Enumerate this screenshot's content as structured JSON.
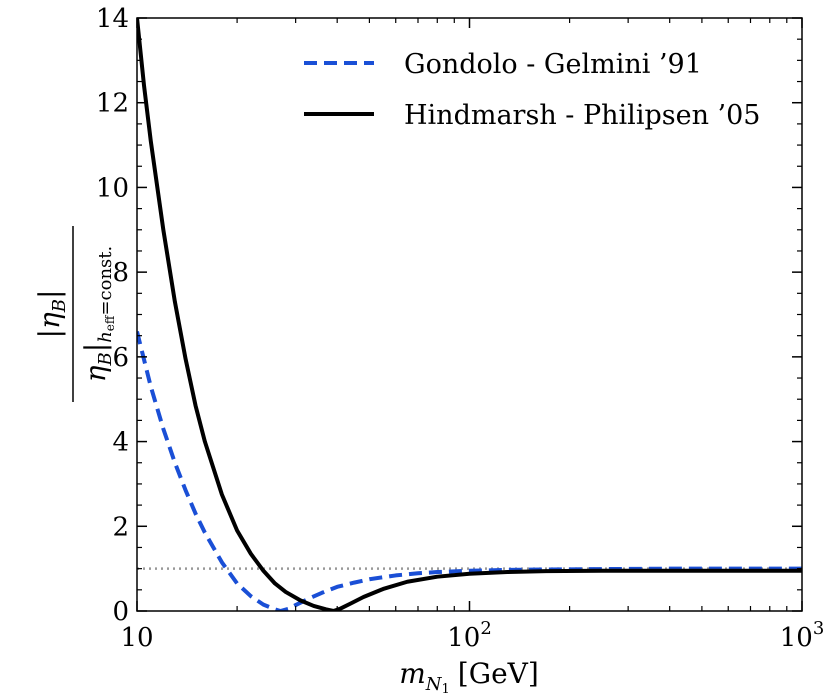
{
  "chart_data": {
    "type": "line",
    "title": "",
    "x_scale": "log",
    "xlim": [
      10,
      1000
    ],
    "ylim": [
      0,
      14
    ],
    "xlabel": "m_{N_1} [GeV]",
    "xlabel_main": "m",
    "xlabel_sub": "N",
    "xlabel_subsub": "1",
    "xlabel_unit": "[GeV]",
    "ylabel_numerator": "|η_B|",
    "ylabel_denominator": "η_B|_{h_eff=const.}",
    "y_num_main": "|η",
    "y_num_sub": "B",
    "y_num_close": "|",
    "y_den_main": "η",
    "y_den_sub": "B",
    "y_den_bar": "|",
    "y_den_h": "h",
    "y_den_eff": "eff",
    "y_den_const": "=const.",
    "x_ticks": [
      {
        "value": 10,
        "label": "10"
      },
      {
        "value": 100,
        "label": "10",
        "sup": "2"
      },
      {
        "value": 1000,
        "label": "10",
        "sup": "3"
      }
    ],
    "y_ticks": [
      {
        "value": 0,
        "label": "0"
      },
      {
        "value": 2,
        "label": "2"
      },
      {
        "value": 4,
        "label": "4"
      },
      {
        "value": 6,
        "label": "6"
      },
      {
        "value": 8,
        "label": "8"
      },
      {
        "value": 10,
        "label": "10"
      },
      {
        "value": 12,
        "label": "12"
      },
      {
        "value": 14,
        "label": "14"
      }
    ],
    "reference_line": {
      "y": 1,
      "color": "#999999",
      "style": "dotted"
    },
    "legend_position": "top-right",
    "series": [
      {
        "name": "Gondolo - Gelmini ’91",
        "color": "#1a4fd6",
        "style": "dashed",
        "x": [
          10,
          11,
          12,
          13,
          14,
          15,
          16,
          18,
          20,
          22,
          24,
          26,
          27,
          28.5,
          30,
          33,
          36,
          40,
          45,
          50,
          60,
          70,
          80,
          100,
          130,
          170,
          250,
          400,
          600,
          1000
        ],
        "y": [
          6.6,
          5.3,
          4.3,
          3.5,
          2.85,
          2.3,
          1.85,
          1.15,
          0.65,
          0.35,
          0.15,
          0.04,
          0.0,
          0.05,
          0.14,
          0.3,
          0.43,
          0.57,
          0.67,
          0.75,
          0.84,
          0.89,
          0.92,
          0.95,
          0.97,
          0.98,
          0.99,
          1.0,
          1.0,
          1.0
        ]
      },
      {
        "name": "Hindmarsh - Philipsen ’05",
        "color": "#000000",
        "style": "solid",
        "x": [
          10,
          10.5,
          11,
          12,
          13,
          14,
          15,
          16,
          18,
          20,
          22,
          24,
          26,
          28,
          31,
          34,
          37,
          39,
          41,
          44,
          48,
          55,
          65,
          80,
          100,
          130,
          170,
          250,
          400,
          600,
          1000
        ],
        "y": [
          14.0,
          12.4,
          11.1,
          9.0,
          7.3,
          5.95,
          4.85,
          4.0,
          2.75,
          1.9,
          1.35,
          0.95,
          0.65,
          0.45,
          0.25,
          0.12,
          0.04,
          0.0,
          0.06,
          0.18,
          0.33,
          0.52,
          0.69,
          0.81,
          0.88,
          0.92,
          0.94,
          0.95,
          0.95,
          0.95,
          0.95
        ]
      }
    ]
  }
}
